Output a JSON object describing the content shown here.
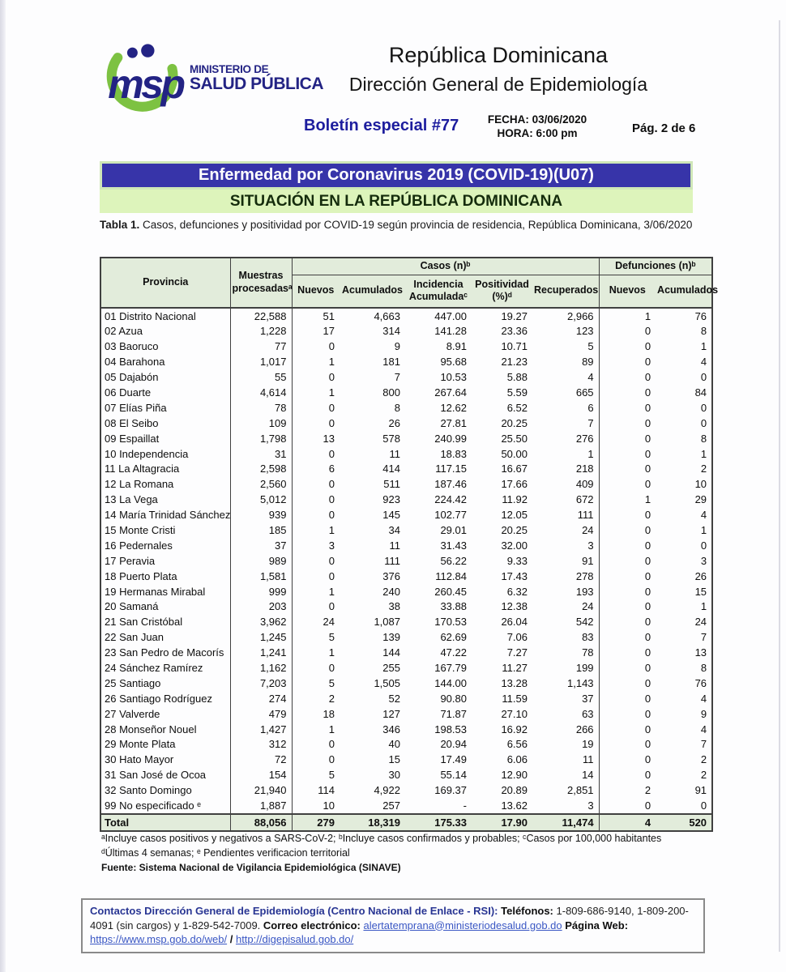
{
  "colors": {
    "banner_blue": "#3734a9",
    "banner_green": "#ddf4bb",
    "table_header_green": "#e2ecdb",
    "logo_green": "#7dc242",
    "logo_navy": "#232384",
    "link_blue": "#3a57c4"
  },
  "header": {
    "logo": {
      "acronym": "msp",
      "line1": "MINISTERIO DE",
      "line2": "SALUD PÚBLICA"
    },
    "title1": "República Dominicana",
    "title2": "Dirección General de Epidemiología",
    "bulletin": "Boletín especial #77",
    "fecha": "FECHA: 03/06/2020",
    "hora": "HORA: 6:00 pm",
    "page_num": "Pág. 2 de 6"
  },
  "banners": {
    "blue": "Enfermedad por Coronavirus 2019 (COVID-19)(U07)",
    "green": "SITUACIÓN EN LA REPÚBLICA DOMINICANA"
  },
  "caption": {
    "bold": "Tabla 1.",
    "text": " Casos, defunciones y positividad por COVID-19 según provincia de residencia, República Dominicana, 3/06/2020"
  },
  "table": {
    "headers": {
      "provincia": "Provincia",
      "muestras": "Muestras procesadasᵃ",
      "casos_group": "Casos (n)ᵇ",
      "defunciones_group": "Defunciones (n)ᵇ",
      "nuevos": "Nuevos",
      "acumulados": "Acumulados",
      "incidencia": "Incidencia Acumuladaᶜ",
      "positividad": "Positividad (%)ᵈ",
      "recuperados": "Recuperados",
      "def_nuevos": "Nuevos",
      "def_acumulados": "Acumulados"
    },
    "rows": [
      [
        "01 Distrito Nacional",
        "22,588",
        "51",
        "4,663",
        "447.00",
        "19.27",
        "2,966",
        "1",
        "76"
      ],
      [
        "02 Azua",
        "1,228",
        "17",
        "314",
        "141.28",
        "23.36",
        "123",
        "0",
        "8"
      ],
      [
        "03 Baoruco",
        "77",
        "0",
        "9",
        "8.91",
        "10.71",
        "5",
        "0",
        "1"
      ],
      [
        "04 Barahona",
        "1,017",
        "1",
        "181",
        "95.68",
        "21.23",
        "89",
        "0",
        "4"
      ],
      [
        "05 Dajabón",
        "55",
        "0",
        "7",
        "10.53",
        "5.88",
        "4",
        "0",
        "0"
      ],
      [
        "06 Duarte",
        "4,614",
        "1",
        "800",
        "267.64",
        "5.59",
        "665",
        "0",
        "84"
      ],
      [
        "07 Elías Piña",
        "78",
        "0",
        "8",
        "12.62",
        "6.52",
        "6",
        "0",
        "0"
      ],
      [
        "08 El Seibo",
        "109",
        "0",
        "26",
        "27.81",
        "20.25",
        "7",
        "0",
        "0"
      ],
      [
        "09 Espaillat",
        "1,798",
        "13",
        "578",
        "240.99",
        "25.50",
        "276",
        "0",
        "8"
      ],
      [
        "10 Independencia",
        "31",
        "0",
        "11",
        "18.83",
        "50.00",
        "1",
        "0",
        "1"
      ],
      [
        "11 La Altagracia",
        "2,598",
        "6",
        "414",
        "117.15",
        "16.67",
        "218",
        "0",
        "2"
      ],
      [
        "12 La Romana",
        "2,560",
        "0",
        "511",
        "187.46",
        "17.66",
        "409",
        "0",
        "10"
      ],
      [
        "13 La Vega",
        "5,012",
        "0",
        "923",
        "224.42",
        "11.92",
        "672",
        "1",
        "29"
      ],
      [
        "14 María Trinidad Sánchez",
        "939",
        "0",
        "145",
        "102.77",
        "12.05",
        "111",
        "0",
        "4"
      ],
      [
        "15 Monte Cristi",
        "185",
        "1",
        "34",
        "29.01",
        "20.25",
        "24",
        "0",
        "1"
      ],
      [
        "16 Pedernales",
        "37",
        "3",
        "11",
        "31.43",
        "32.00",
        "3",
        "0",
        "0"
      ],
      [
        "17 Peravia",
        "989",
        "0",
        "111",
        "56.22",
        "9.33",
        "91",
        "0",
        "3"
      ],
      [
        "18 Puerto Plata",
        "1,581",
        "0",
        "376",
        "112.84",
        "17.43",
        "278",
        "0",
        "26"
      ],
      [
        "19 Hermanas Mirabal",
        "999",
        "1",
        "240",
        "260.45",
        "6.32",
        "193",
        "0",
        "15"
      ],
      [
        "20 Samaná",
        "203",
        "0",
        "38",
        "33.88",
        "12.38",
        "24",
        "0",
        "1"
      ],
      [
        "21 San Cristóbal",
        "3,962",
        "24",
        "1,087",
        "170.53",
        "26.04",
        "542",
        "0",
        "24"
      ],
      [
        "22 San Juan",
        "1,245",
        "5",
        "139",
        "62.69",
        "7.06",
        "83",
        "0",
        "7"
      ],
      [
        "23 San Pedro de Macorís",
        "1,241",
        "1",
        "144",
        "47.22",
        "7.27",
        "78",
        "0",
        "13"
      ],
      [
        "24 Sánchez Ramírez",
        "1,162",
        "0",
        "255",
        "167.79",
        "11.27",
        "199",
        "0",
        "8"
      ],
      [
        "25 Santiago",
        "7,203",
        "5",
        "1,505",
        "144.00",
        "13.28",
        "1,143",
        "0",
        "76"
      ],
      [
        "26 Santiago Rodríguez",
        "274",
        "2",
        "52",
        "90.80",
        "11.59",
        "37",
        "0",
        "4"
      ],
      [
        "27 Valverde",
        "479",
        "18",
        "127",
        "71.87",
        "27.10",
        "63",
        "0",
        "9"
      ],
      [
        "28 Monseñor Nouel",
        "1,427",
        "1",
        "346",
        "198.53",
        "16.92",
        "266",
        "0",
        "4"
      ],
      [
        "29 Monte Plata",
        "312",
        "0",
        "40",
        "20.94",
        "6.56",
        "19",
        "0",
        "7"
      ],
      [
        "30 Hato Mayor",
        "72",
        "0",
        "15",
        "17.49",
        "6.06",
        "11",
        "0",
        "2"
      ],
      [
        "31 San José de Ocoa",
        "154",
        "5",
        "30",
        "55.14",
        "12.90",
        "14",
        "0",
        "2"
      ],
      [
        "32 Santo Domingo",
        "21,940",
        "114",
        "4,922",
        "169.37",
        "20.89",
        "2,851",
        "2",
        "91"
      ],
      [
        "99 No especificado ᵉ",
        "1,887",
        "10",
        "257",
        "-",
        "13.62",
        "3",
        "0",
        "0"
      ]
    ],
    "total": [
      "Total",
      "88,056",
      "279",
      "18,319",
      "175.33",
      "17.90",
      "11,474",
      "4",
      "520"
    ]
  },
  "footnotes": [
    "ᵃIncluye casos positivos y negativos a SARS-CoV-2; ᵇIncluye casos confirmados y probables; ᶜCasos por 100,000 habitantes",
    "ᵈÚltimas 4 semanas; ᵉ Pendientes verificacion territorial"
  ],
  "source": "Fuente: Sistema Nacional de Vigilancia Epidemiológica (SINAVE)",
  "contact": {
    "label": "Contactos Dirección General de Epidemiología (Centro Nacional de Enlace - RSI):",
    "phones_label": "Teléfonos:",
    "phones": "1-809-686-9140, 1-809-200-4091 (sin cargos) y 1-829-542-7009.",
    "email_label": "Correo electrónico:",
    "email": "alertatemprana@ministeriodesalud.gob.do",
    "web_label": "Página Web:",
    "web1": "https://www.msp.gob.do/web/",
    "sep": "/",
    "web2": "http://digepisalud.gob.do/"
  }
}
